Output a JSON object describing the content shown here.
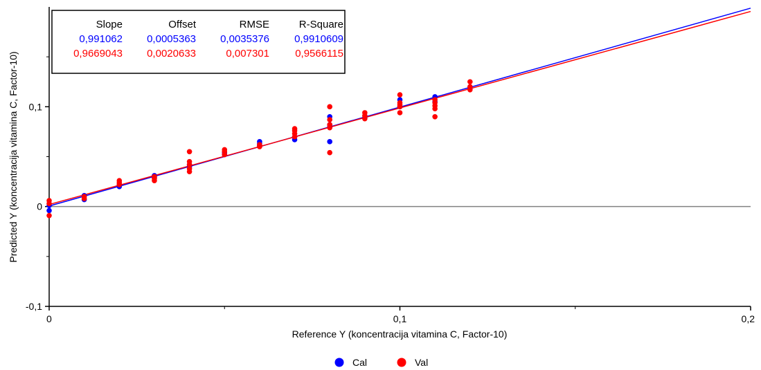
{
  "chart_data": {
    "type": "scatter",
    "xlabel": "Reference Y (koncentracija vitamina C, Factor-10)",
    "ylabel": "Predicted Y (koncentracija vitamina C, Factor-10)",
    "xlim": [
      0,
      0.2
    ],
    "ylim": [
      -0.1,
      0.2
    ],
    "x_ticks": [
      {
        "v": 0,
        "label": "0"
      },
      {
        "v": 0.1,
        "label": "0,1"
      },
      {
        "v": 0.2,
        "label": "0,2"
      }
    ],
    "y_ticks": [
      {
        "v": -0.1,
        "label": "-0,1"
      },
      {
        "v": 0,
        "label": "0"
      },
      {
        "v": 0.1,
        "label": "0,1"
      }
    ],
    "x_minor_ticks": [
      0.05,
      0.15
    ],
    "y_minor_ticks": [
      -0.05,
      0.05,
      0.15
    ],
    "zero_line": 0,
    "legend_position": "bottom-center",
    "stats_table": {
      "headers": [
        "Slope",
        "Offset",
        "RMSE",
        "R-Square"
      ],
      "rows": [
        {
          "color": "#0000ff",
          "values": [
            "0,991062",
            "0,0005363",
            "0,0035376",
            "0,9910609"
          ]
        },
        {
          "color": "#ff0000",
          "values": [
            "0,9669043",
            "0,0020633",
            "0,007301",
            "0,9566115"
          ]
        }
      ]
    },
    "series": [
      {
        "name": "Cal",
        "color": "#0000ff",
        "regression": {
          "slope": 0.991062,
          "offset": 0.0005363
        },
        "points": [
          [
            0,
            -0.004
          ],
          [
            0,
            0.001
          ],
          [
            0.01,
            0.007
          ],
          [
            0.01,
            0.011
          ],
          [
            0.02,
            0.02
          ],
          [
            0.02,
            0.022
          ],
          [
            0.03,
            0.029
          ],
          [
            0.03,
            0.031
          ],
          [
            0.04,
            0.04
          ],
          [
            0.04,
            0.042
          ],
          [
            0.05,
            0.052
          ],
          [
            0.05,
            0.054
          ],
          [
            0.06,
            0.061
          ],
          [
            0.06,
            0.063
          ],
          [
            0.06,
            0.065
          ],
          [
            0.07,
            0.067
          ],
          [
            0.07,
            0.07
          ],
          [
            0.08,
            0.065
          ],
          [
            0.08,
            0.08
          ],
          [
            0.08,
            0.082
          ],
          [
            0.08,
            0.09
          ],
          [
            0.09,
            0.089
          ],
          [
            0.1,
            0.1
          ],
          [
            0.1,
            0.107
          ],
          [
            0.11,
            0.105
          ],
          [
            0.11,
            0.11
          ],
          [
            0.12,
            0.119
          ]
        ]
      },
      {
        "name": "Val",
        "color": "#ff0000",
        "regression": {
          "slope": 0.9669043,
          "offset": 0.0020633
        },
        "points": [
          [
            0,
            -0.009
          ],
          [
            0,
            0.003
          ],
          [
            0,
            0.006
          ],
          [
            0.01,
            0.008
          ],
          [
            0.01,
            0.01
          ],
          [
            0.02,
            0.022
          ],
          [
            0.02,
            0.024
          ],
          [
            0.02,
            0.026
          ],
          [
            0.03,
            0.026
          ],
          [
            0.03,
            0.028
          ],
          [
            0.03,
            0.03
          ],
          [
            0.04,
            0.035
          ],
          [
            0.04,
            0.038
          ],
          [
            0.04,
            0.042
          ],
          [
            0.04,
            0.045
          ],
          [
            0.04,
            0.055
          ],
          [
            0.05,
            0.052
          ],
          [
            0.05,
            0.055
          ],
          [
            0.05,
            0.057
          ],
          [
            0.06,
            0.06
          ],
          [
            0.06,
            0.062
          ],
          [
            0.07,
            0.07
          ],
          [
            0.07,
            0.073
          ],
          [
            0.07,
            0.076
          ],
          [
            0.07,
            0.078
          ],
          [
            0.08,
            0.054
          ],
          [
            0.08,
            0.079
          ],
          [
            0.08,
            0.082
          ],
          [
            0.08,
            0.087
          ],
          [
            0.08,
            0.1
          ],
          [
            0.09,
            0.088
          ],
          [
            0.09,
            0.091
          ],
          [
            0.09,
            0.094
          ],
          [
            0.1,
            0.094
          ],
          [
            0.1,
            0.1
          ],
          [
            0.1,
            0.102
          ],
          [
            0.1,
            0.104
          ],
          [
            0.1,
            0.112
          ],
          [
            0.11,
            0.09
          ],
          [
            0.11,
            0.098
          ],
          [
            0.11,
            0.101
          ],
          [
            0.11,
            0.104
          ],
          [
            0.11,
            0.107
          ],
          [
            0.12,
            0.117
          ],
          [
            0.12,
            0.12
          ],
          [
            0.12,
            0.125
          ]
        ]
      }
    ]
  }
}
